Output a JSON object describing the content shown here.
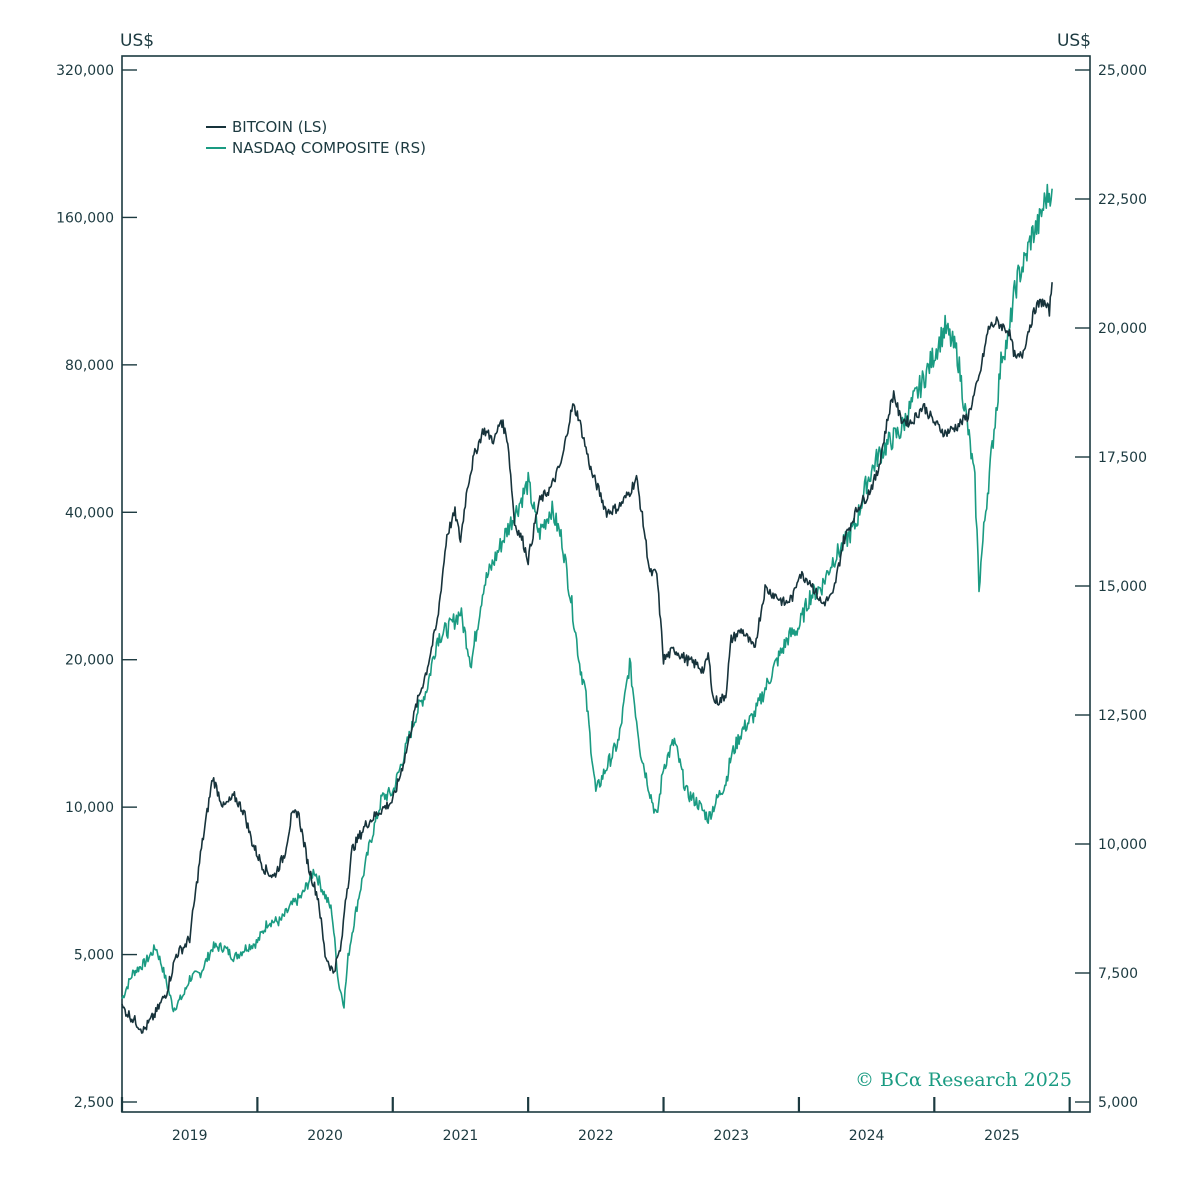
{
  "chart_data": {
    "type": "line",
    "title": "",
    "left_axis": {
      "unit": "US$",
      "scale": "log",
      "ylim": [
        2500,
        320000
      ],
      "ticks": [
        2500,
        5000,
        10000,
        20000,
        40000,
        80000,
        160000,
        320000
      ],
      "tick_labels": [
        "2,500",
        "5,000",
        "10,000",
        "20,000",
        "40,000",
        "80,000",
        "160,000",
        "320,000"
      ]
    },
    "right_axis": {
      "unit": "US$",
      "scale": "linear",
      "ylim": [
        5000,
        25000
      ],
      "ticks": [
        5000,
        7500,
        10000,
        12500,
        15000,
        17500,
        20000,
        22500,
        25000
      ],
      "tick_labels": [
        "5,000",
        "7,500",
        "10,000",
        "12,500",
        "15,000",
        "17,500",
        "20,000",
        "22,500",
        "25,000"
      ]
    },
    "x_axis": {
      "xlim": [
        2018.5,
        2025.65
      ],
      "tick_positions": [
        2018.5,
        2019.5,
        2020.5,
        2021.5,
        2022.5,
        2023.5,
        2024.5,
        2025.5
      ],
      "year_labels": [
        "2019",
        "2020",
        "2021",
        "2022",
        "2023",
        "2024",
        "2025"
      ],
      "year_label_positions": [
        2019.0,
        2020.0,
        2021.0,
        2022.0,
        2023.0,
        2024.0,
        2025.0
      ]
    },
    "series": [
      {
        "name": "BITCOIN (LS)",
        "axis": "left",
        "color": "#17333b",
        "x": [
          2018.5,
          2018.58,
          2018.66,
          2018.75,
          2018.83,
          2018.9,
          2018.96,
          2019.0,
          2019.08,
          2019.17,
          2019.25,
          2019.33,
          2019.4,
          2019.46,
          2019.5,
          2019.55,
          2019.62,
          2019.7,
          2019.75,
          2019.8,
          2019.88,
          2019.95,
          2020.0,
          2020.06,
          2020.12,
          2020.15,
          2020.17,
          2020.2,
          2020.3,
          2020.4,
          2020.5,
          2020.55,
          2020.6,
          2020.67,
          2020.75,
          2020.83,
          2020.9,
          2020.96,
          2021.0,
          2021.05,
          2021.1,
          2021.17,
          2021.25,
          2021.3,
          2021.35,
          2021.4,
          2021.46,
          2021.5,
          2021.58,
          2021.67,
          2021.75,
          2021.8,
          2021.83,
          2021.87,
          2021.92,
          2021.97,
          2022.0,
          2022.08,
          2022.17,
          2022.25,
          2022.3,
          2022.35,
          2022.4,
          2022.45,
          2022.5,
          2022.58,
          2022.67,
          2022.75,
          2022.8,
          2022.83,
          2022.87,
          2022.92,
          2022.96,
          2023.0,
          2023.08,
          2023.17,
          2023.25,
          2023.33,
          2023.4,
          2023.46,
          2023.5,
          2023.58,
          2023.67,
          2023.75,
          2023.83,
          2023.92,
          2023.96,
          2024.0,
          2024.08,
          2024.17,
          2024.2,
          2024.25,
          2024.33,
          2024.42,
          2024.5,
          2024.58,
          2024.67,
          2024.75,
          2024.83,
          2024.9,
          2024.96,
          2025.0,
          2025.05,
          2025.1,
          2025.15,
          2025.2,
          2025.25,
          2025.3,
          2025.35,
          2025.37
        ],
        "values": [
          3900,
          3700,
          3500,
          3800,
          4200,
          5000,
          5200,
          5400,
          8000,
          11500,
          10000,
          10500,
          9800,
          8500,
          8000,
          7500,
          7200,
          8000,
          9500,
          9800,
          7500,
          6500,
          5000,
          4600,
          5200,
          6500,
          7000,
          8200,
          9200,
          9800,
          10300,
          11500,
          13000,
          16000,
          19000,
          24000,
          36000,
          40000,
          35000,
          45000,
          52000,
          59000,
          56000,
          62000,
          56000,
          38000,
          35000,
          32000,
          42000,
          45000,
          51000,
          61000,
          66000,
          63000,
          55000,
          48000,
          46000,
          40000,
          41000,
          44000,
          47000,
          38000,
          30000,
          30000,
          20000,
          21000,
          20000,
          19500,
          19000,
          20500,
          16500,
          16500,
          17000,
          22000,
          23000,
          21000,
          28000,
          27000,
          26000,
          27000,
          30000,
          29000,
          26000,
          27000,
          35000,
          40000,
          42000,
          43000,
          48000,
          65000,
          70000,
          62000,
          61000,
          66000,
          61000,
          58000,
          60000,
          63000,
          75000,
          95000,
          98000,
          96000,
          94000,
          82000,
          84000,
          95000,
          105000,
          108000,
          103000,
          118000
        ]
      },
      {
        "name": "NASDAQ COMPOSITE (RS)",
        "axis": "right",
        "color": "#1a9b82",
        "x": [
          2018.5,
          2018.58,
          2018.67,
          2018.75,
          2018.8,
          2018.88,
          2018.96,
          2019.0,
          2019.08,
          2019.17,
          2019.25,
          2019.33,
          2019.42,
          2019.5,
          2019.58,
          2019.67,
          2019.75,
          2019.83,
          2019.92,
          2020.0,
          2020.05,
          2020.1,
          2020.14,
          2020.17,
          2020.2,
          2020.25,
          2020.33,
          2020.42,
          2020.5,
          2020.58,
          2020.67,
          2020.75,
          2020.83,
          2020.92,
          2021.0,
          2021.08,
          2021.17,
          2021.25,
          2021.33,
          2021.42,
          2021.5,
          2021.58,
          2021.67,
          2021.75,
          2021.83,
          2021.88,
          2021.92,
          2022.0,
          2022.08,
          2022.17,
          2022.25,
          2022.33,
          2022.4,
          2022.45,
          2022.5,
          2022.58,
          2022.67,
          2022.75,
          2022.83,
          2022.92,
          2022.96,
          2023.0,
          2023.08,
          2023.17,
          2023.25,
          2023.33,
          2023.42,
          2023.5,
          2023.58,
          2023.67,
          2023.75,
          2023.83,
          2023.92,
          2024.0,
          2024.08,
          2024.17,
          2024.25,
          2024.33,
          2024.42,
          2024.5,
          2024.58,
          2024.67,
          2024.75,
          2024.8,
          2024.83,
          2024.88,
          2024.92,
          2025.0,
          2025.05,
          2025.08,
          2025.12,
          2025.17,
          2025.22,
          2025.27,
          2025.32,
          2025.37
        ],
        "values": [
          7000,
          7500,
          7700,
          8000,
          7600,
          6800,
          7100,
          7400,
          7500,
          8000,
          8000,
          7800,
          8000,
          8100,
          8500,
          8500,
          8800,
          9000,
          9500,
          9000,
          8700,
          7300,
          6900,
          7800,
          8300,
          9000,
          10000,
          10900,
          11000,
          11700,
          12500,
          13000,
          14000,
          14200,
          14500,
          13500,
          15000,
          15500,
          16000,
          16500,
          17000,
          16000,
          16500,
          15900,
          14500,
          13500,
          13000,
          11000,
          11500,
          12000,
          13500,
          11800,
          11000,
          10500,
          11500,
          12000,
          11000,
          10800,
          10500,
          11000,
          11200,
          11700,
          12200,
          12500,
          13000,
          13500,
          14000,
          14200,
          14800,
          15000,
          15500,
          15800,
          16200,
          17000,
          17500,
          17800,
          18000,
          18500,
          19000,
          19500,
          20000,
          19500,
          18000,
          17000,
          15000,
          16500,
          17500,
          19500,
          19800,
          20500,
          21000,
          21300,
          21800,
          22000,
          22500,
          22700
        ]
      }
    ],
    "legend": {
      "placement": "top-left",
      "entries": [
        "BITCOIN (LS)",
        "NASDAQ COMPOSITE (RS)"
      ]
    },
    "credit": "© BCα Research 2025"
  }
}
